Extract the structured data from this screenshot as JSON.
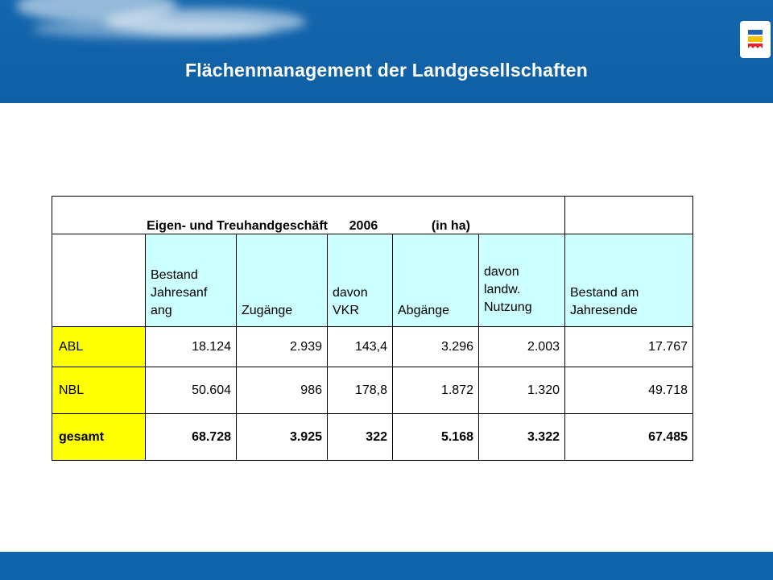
{
  "slide": {
    "title": "Flächenmanagement der Landgesellschaften"
  },
  "table": {
    "caption": {
      "text": "Eigen- und Treuhandgeschäft",
      "year": "2006",
      "unit": "(in ha)"
    },
    "headers": [
      "",
      "Bestand Jahresanfang",
      "Zugänge",
      "davon VKR",
      "Abgänge",
      "davon landw. Nutzung",
      "Bestand am Jahresende"
    ],
    "header_lines": {
      "bestand_anfang": [
        "Bestand",
        "Jahresanf",
        "ang"
      ],
      "davon_vkr": [
        "davon",
        "VKR"
      ],
      "davon_landw": [
        "davon",
        "landw.",
        "Nutzung"
      ],
      "bestand_ende": [
        "Bestand am",
        "Jahresende"
      ]
    },
    "rows": [
      {
        "label": "ABL",
        "values": [
          "18.124",
          "2.939",
          "143,4",
          "3.296",
          "2.003",
          "17.767"
        ]
      },
      {
        "label": "NBL",
        "values": [
          "50.604",
          "986",
          "178,8",
          "1.872",
          "1.320",
          "49.718"
        ]
      },
      {
        "label": "gesamt",
        "values": [
          "68.728",
          "3.925",
          "322",
          "5.168",
          "3.322",
          "67.485"
        ]
      }
    ],
    "colors": {
      "header_fill": "#ccffff",
      "label_fill": "#ffff00",
      "caption_text": "#2e8b57"
    }
  },
  "colors": {
    "band": "#0f5fa6",
    "title_text": "#ffffff"
  }
}
